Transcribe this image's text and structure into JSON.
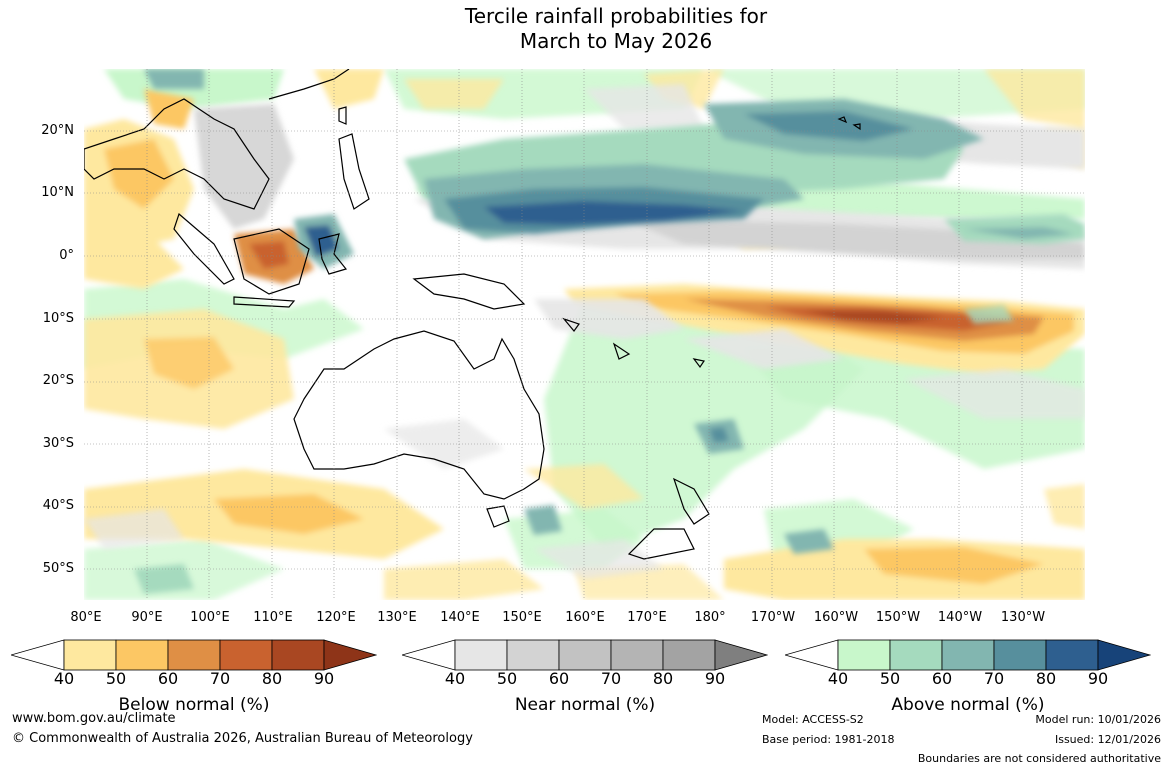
{
  "title": {
    "line1": "Tercile rainfall probabilities for",
    "line2": "March to May 2026"
  },
  "map": {
    "latitude_labels": [
      "20°N",
      "10°N",
      "0°",
      "10°S",
      "20°S",
      "30°S",
      "40°S",
      "50°S"
    ],
    "longitude_labels": [
      "80°E",
      "90°E",
      "100°E",
      "110°E",
      "120°E",
      "130°E",
      "140°E",
      "150°E",
      "160°E",
      "170°E",
      "180°",
      "170°W",
      "160°W",
      "150°W",
      "140°W",
      "130°W"
    ]
  },
  "legend": {
    "tick_labels": [
      "40",
      "50",
      "60",
      "70",
      "80",
      "90"
    ],
    "below_normal": {
      "label": "Below normal (%)",
      "colors": [
        "#ffffff",
        "#fee89f",
        "#fcc764",
        "#df8f45",
        "#c9622f",
        "#a94722",
        "#8e3418"
      ]
    },
    "near_normal": {
      "label": "Near normal (%)",
      "colors": [
        "#ffffff",
        "#e6e6e6",
        "#d3d3d3",
        "#c2c2c2",
        "#b4b4b4",
        "#a3a3a3",
        "#7f7f7f"
      ]
    },
    "above_normal": {
      "label": "Above normal (%)",
      "colors": [
        "#ffffff",
        "#c8f7cb",
        "#a5dabe",
        "#82b6b0",
        "#578f9d",
        "#2e5f8f",
        "#174379"
      ]
    }
  },
  "footer": {
    "website": "www.bom.gov.au/climate",
    "copyright": "© Commonwealth of Australia 2026, Australian Bureau of Meteorology",
    "model": "Model: ACCESS-S2",
    "base_period": "Base period: 1981-2018",
    "model_run": "Model run: 10/01/2026",
    "issued": "Issued: 12/01/2026",
    "disclaimer": "Boundaries are not considered authoritative"
  }
}
